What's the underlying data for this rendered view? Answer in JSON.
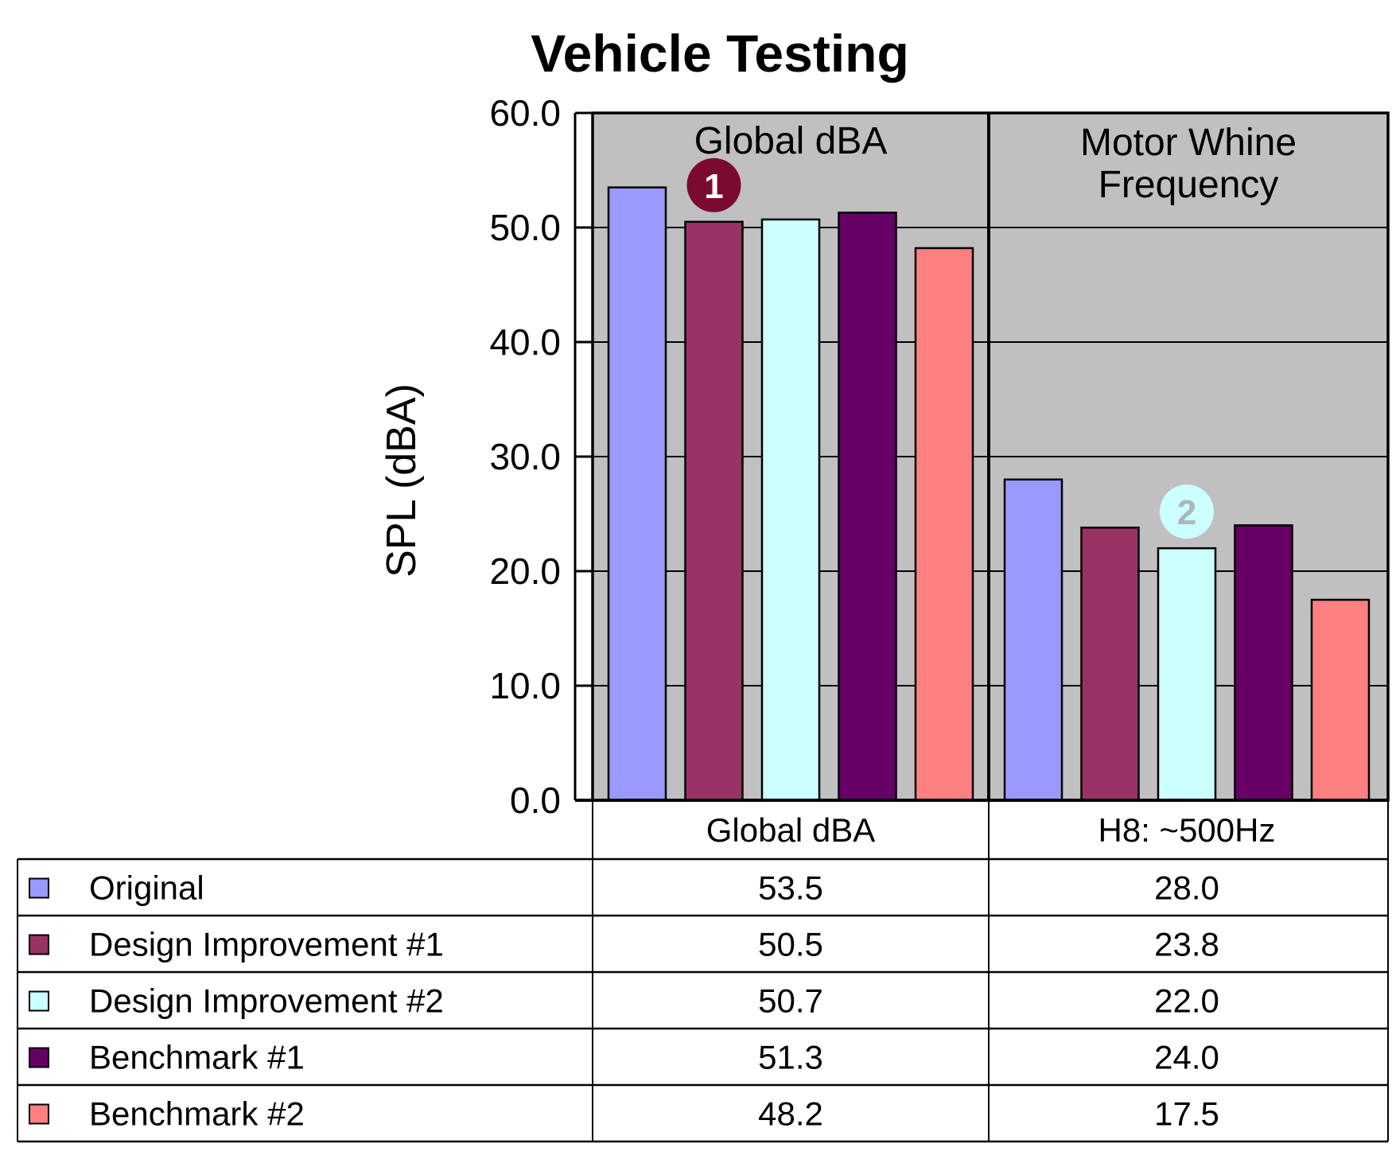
{
  "chart_data": {
    "type": "bar",
    "title": "Vehicle Testing",
    "ylabel": "SPL (dBA)",
    "xlabel": "",
    "ylim": [
      0,
      60
    ],
    "yticks": [
      "0.0",
      "10.0",
      "20.0",
      "30.0",
      "40.0",
      "50.0",
      "60.0"
    ],
    "grid": true,
    "categories": [
      "Global dBA",
      "H8: ~500Hz"
    ],
    "panel_labels": [
      "Global dBA",
      "Motor Whine Frequency"
    ],
    "series": [
      {
        "name": "Original",
        "color": "#9999ff",
        "values": [
          53.5,
          28.0
        ],
        "labels": [
          "53.5",
          "28.0"
        ]
      },
      {
        "name": "Design Improvement #1",
        "color": "#993366",
        "values": [
          50.5,
          23.8
        ],
        "labels": [
          "50.5",
          "23.8"
        ]
      },
      {
        "name": "Design Improvement #2",
        "color": "#ccffff",
        "values": [
          50.7,
          22.0
        ],
        "labels": [
          "50.7",
          "22.0"
        ]
      },
      {
        "name": "Benchmark #1",
        "color": "#660066",
        "values": [
          51.3,
          24.0
        ],
        "labels": [
          "51.3",
          "24.0"
        ]
      },
      {
        "name": "Benchmark #2",
        "color": "#ff8080",
        "values": [
          48.2,
          17.5
        ],
        "labels": [
          "48.2",
          "17.5"
        ]
      }
    ],
    "annotations": [
      {
        "text": "1",
        "category": 0,
        "series": 1,
        "color": "#7a0a2e"
      },
      {
        "text": "2",
        "category": 1,
        "series": 2,
        "color": "#ccffff"
      }
    ],
    "plot_background": "#c0c0c0"
  }
}
